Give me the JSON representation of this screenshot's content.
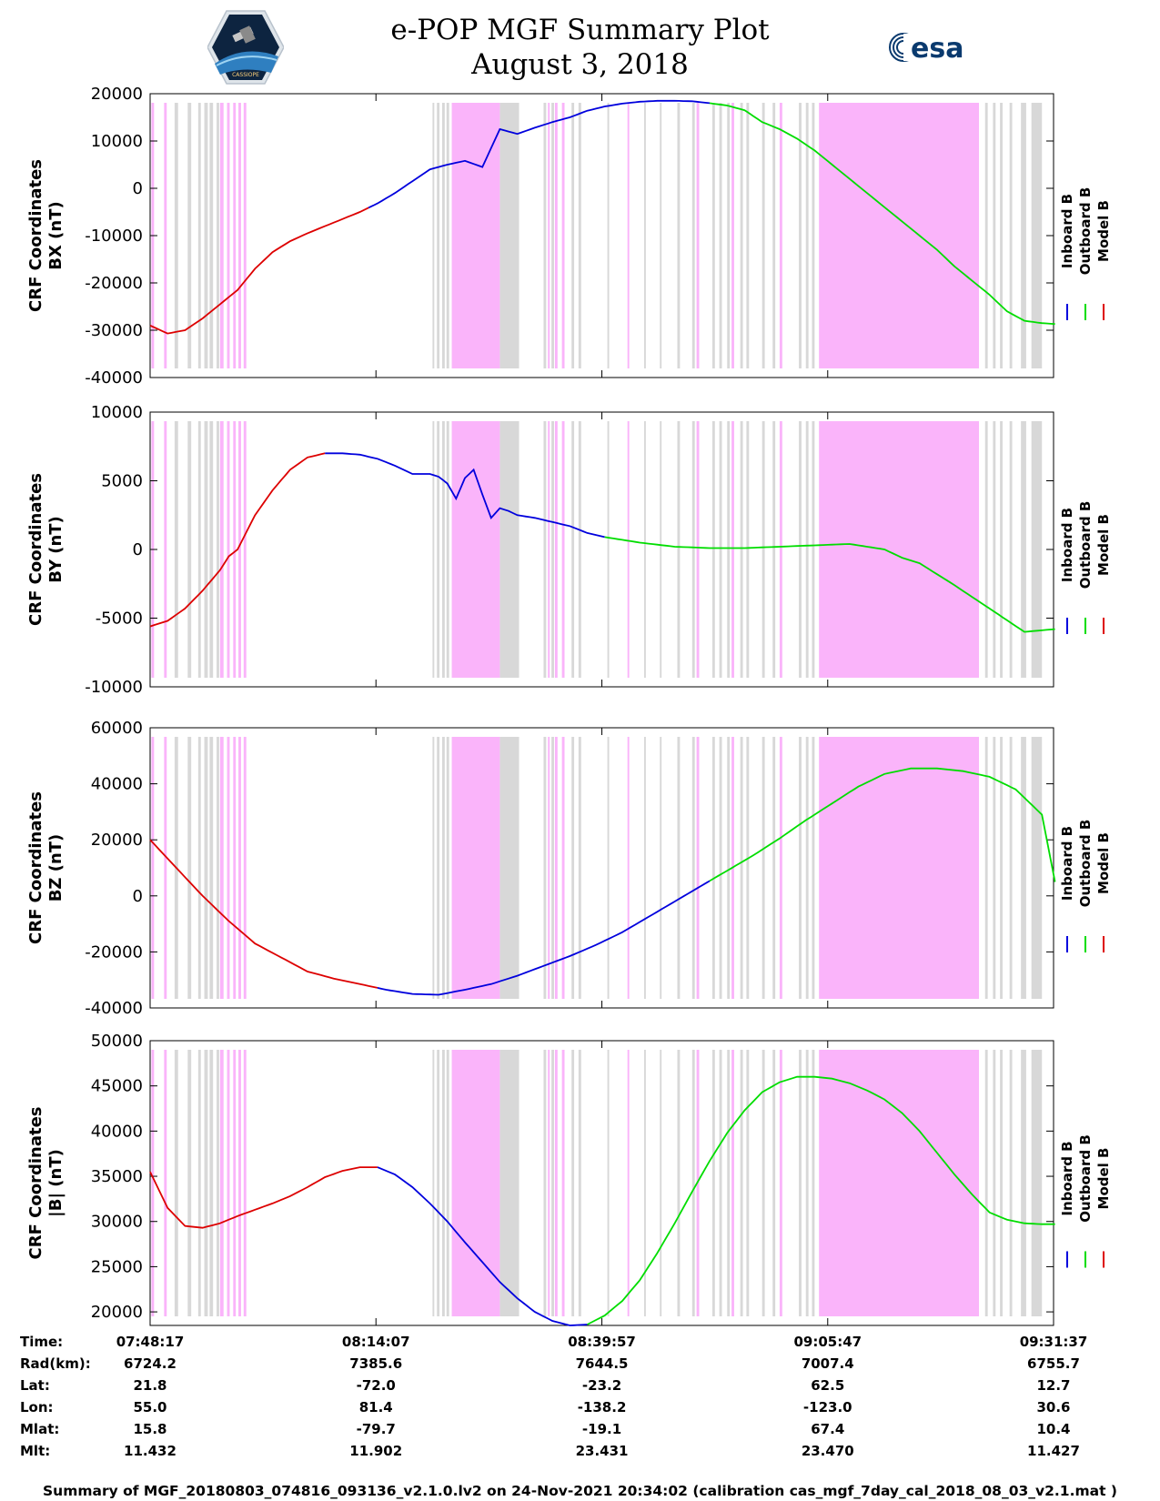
{
  "header": {
    "title_line1": "e-POP MGF Summary Plot",
    "title_line2": "August 3, 2018",
    "left_logo_text": "CASSIOPE",
    "right_logo_text": "esa"
  },
  "colors": {
    "inboard": "#0000dd",
    "outboard": "#00dd00",
    "model": "#dd0000",
    "shade_magenta": "#fab4fa",
    "shade_gray": "#d8d8d8"
  },
  "chart_data": [
    {
      "type": "line",
      "id": "bx",
      "ylabel": [
        "CRF Coordinates",
        "BX (nT)"
      ],
      "ylim": [
        -40000,
        20000
      ],
      "yticks": [
        20000,
        10000,
        0,
        -10000,
        -20000,
        -30000,
        -40000
      ],
      "legend": [
        "Inboard B",
        "Outboard B",
        "Model B"
      ],
      "x_minutes": [
        0,
        2,
        4,
        6,
        8,
        10,
        12,
        14,
        16,
        18,
        20,
        22,
        24,
        26,
        28,
        30,
        32,
        34,
        36,
        38,
        40,
        42,
        44,
        46,
        48,
        50,
        52,
        54,
        56,
        58,
        60,
        62,
        64,
        66,
        68,
        70,
        72,
        74,
        76,
        78,
        80,
        82,
        84,
        86,
        88,
        90,
        92,
        94,
        96,
        98,
        100,
        102,
        103.5
      ],
      "values": [
        -29000,
        -30700,
        -30000,
        -27500,
        -24500,
        -21500,
        -17000,
        -13500,
        -11200,
        -9500,
        -8000,
        -6500,
        -5000,
        -3200,
        -1000,
        1500,
        4000,
        5000,
        5800,
        4500,
        12500,
        11500,
        12800,
        14000,
        15000,
        16400,
        17300,
        17900,
        18300,
        18500,
        18500,
        18400,
        18000,
        17500,
        16500,
        14000,
        12500,
        10500,
        8000,
        5000,
        2000,
        -1000,
        -4000,
        -7000,
        -10000,
        -13000,
        -16500,
        -19500,
        -22500,
        -26000,
        -28000,
        -28500,
        -28700
      ],
      "series_segments": [
        {
          "name": "Model B",
          "from": 0,
          "to": 25
        },
        {
          "name": "Inboard B",
          "from": 25,
          "to": 64
        },
        {
          "name": "Outboard B",
          "from": 64,
          "to": 103.5
        }
      ]
    },
    {
      "type": "line",
      "id": "by",
      "ylabel": [
        "CRF Coordinates",
        "BY (nT)"
      ],
      "ylim": [
        -10000,
        10000
      ],
      "yticks": [
        10000,
        5000,
        0,
        -5000,
        -10000
      ],
      "legend": [
        "Inboard B",
        "Outboard B",
        "Model B"
      ],
      "x_minutes": [
        0,
        2,
        4,
        6,
        8,
        9,
        10,
        12,
        14,
        16,
        18,
        20,
        22,
        24,
        26,
        28,
        30,
        32,
        33,
        34,
        35,
        36,
        37,
        38,
        39,
        40,
        41,
        42,
        44,
        46,
        48,
        50,
        52,
        56,
        60,
        64,
        68,
        72,
        76,
        80,
        84,
        86,
        88,
        92,
        96,
        100,
        103.5
      ],
      "values": [
        -5600,
        -5200,
        -4300,
        -3000,
        -1500,
        -500,
        0,
        2500,
        4300,
        5800,
        6700,
        7000,
        7000,
        6900,
        6600,
        6100,
        5500,
        5500,
        5300,
        4800,
        3700,
        5200,
        5800,
        4000,
        2300,
        3000,
        2800,
        2500,
        2300,
        2000,
        1700,
        1200,
        900,
        500,
        200,
        100,
        100,
        200,
        300,
        400,
        0,
        -600,
        -1000,
        -2600,
        -4300,
        -6000,
        -5800
      ],
      "series_segments": [
        {
          "name": "Model B",
          "from": 0,
          "to": 20
        },
        {
          "name": "Inboard B",
          "from": 20,
          "to": 52
        },
        {
          "name": "Outboard B",
          "from": 52,
          "to": 103.5
        }
      ]
    },
    {
      "type": "line",
      "id": "bz",
      "ylabel": [
        "CRF Coordinates",
        "BZ (nT)"
      ],
      "ylim": [
        -40000,
        60000
      ],
      "yticks": [
        60000,
        40000,
        20000,
        0,
        -20000,
        -40000
      ],
      "legend": [
        "Inboard B",
        "Outboard B",
        "Model B"
      ],
      "x_minutes": [
        0,
        3,
        6,
        9,
        12,
        15,
        18,
        21,
        24,
        27,
        30,
        33,
        36,
        39,
        42,
        45,
        48,
        51,
        54,
        57,
        60,
        63,
        66,
        69,
        72,
        75,
        78,
        81,
        84,
        87,
        90,
        93,
        96,
        99,
        102,
        103.5
      ],
      "values": [
        20000,
        10000,
        0,
        -9000,
        -17000,
        -22000,
        -27000,
        -29500,
        -31500,
        -33500,
        -35000,
        -35300,
        -33500,
        -31500,
        -28500,
        -25000,
        -21500,
        -17500,
        -13000,
        -7500,
        -2000,
        3500,
        9000,
        14500,
        20500,
        27000,
        33000,
        39000,
        43500,
        45500,
        45500,
        44500,
        42500,
        38000,
        29000,
        5000
      ],
      "series_segments": [
        {
          "name": "Model B",
          "from": 0,
          "to": 26
        },
        {
          "name": "Inboard B",
          "from": 26,
          "to": 64
        },
        {
          "name": "Outboard B",
          "from": 64,
          "to": 103.5
        }
      ]
    },
    {
      "type": "line",
      "id": "bt",
      "ylabel": [
        "CRF Coordinates",
        "|B| (nT)"
      ],
      "ylim": [
        18500,
        50000
      ],
      "yticks": [
        50000,
        45000,
        40000,
        35000,
        30000,
        25000,
        20000
      ],
      "legend": [
        "Inboard B",
        "Outboard B",
        "Model B"
      ],
      "x_minutes": [
        0,
        2,
        4,
        6,
        8,
        10,
        12,
        14,
        16,
        18,
        20,
        22,
        24,
        26,
        28,
        30,
        32,
        34,
        36,
        38,
        40,
        42,
        44,
        46,
        48,
        50,
        52,
        54,
        56,
        58,
        60,
        62,
        64,
        66,
        68,
        70,
        72,
        74,
        76,
        78,
        80,
        82,
        84,
        86,
        88,
        90,
        92,
        94,
        96,
        98,
        100,
        102,
        103.5
      ],
      "values": [
        35500,
        31500,
        29500,
        29300,
        29800,
        30600,
        31300,
        32000,
        32800,
        33800,
        34900,
        35600,
        36000,
        36000,
        35200,
        33800,
        32000,
        30000,
        27700,
        25500,
        23300,
        21500,
        20000,
        19000,
        18500,
        18600,
        19600,
        21200,
        23500,
        26500,
        29800,
        33300,
        36700,
        39800,
        42300,
        44300,
        45400,
        46000,
        46000,
        45800,
        45300,
        44500,
        43500,
        42000,
        40000,
        37600,
        35200,
        33000,
        31000,
        30200,
        29800,
        29700,
        29700
      ],
      "series_segments": [
        {
          "name": "Model B",
          "from": 0,
          "to": 26
        },
        {
          "name": "Inboard B",
          "from": 26,
          "to": 50
        },
        {
          "name": "Outboard B",
          "from": 50,
          "to": 103.5
        }
      ]
    }
  ],
  "shading_minutes": {
    "magenta": [
      [
        0.15,
        0.45
      ],
      [
        1.6,
        1.9
      ],
      [
        8.0,
        8.4
      ],
      [
        8.8,
        9.1
      ],
      [
        9.5,
        9.8
      ],
      [
        10.1,
        10.4
      ],
      [
        10.7,
        11.0
      ],
      [
        34.5,
        40.0
      ],
      [
        45.5,
        45.7
      ],
      [
        46.3,
        46.6
      ],
      [
        47.1,
        47.4
      ],
      [
        54.6,
        54.8
      ],
      [
        62.5,
        62.8
      ],
      [
        66.5,
        66.8
      ],
      [
        72.0,
        72.3
      ],
      [
        76.5,
        94.8
      ]
    ],
    "gray": [
      [
        2.8,
        3.2
      ],
      [
        4.3,
        4.7
      ],
      [
        5.5,
        5.8
      ],
      [
        6.2,
        6.6
      ],
      [
        6.8,
        7.2
      ],
      [
        7.6,
        7.9
      ],
      [
        32.3,
        32.5
      ],
      [
        32.8,
        33.1
      ],
      [
        33.4,
        33.7
      ],
      [
        33.9,
        34.2
      ],
      [
        40.0,
        42.2
      ],
      [
        45.0,
        45.3
      ],
      [
        45.9,
        46.2
      ],
      [
        48.2,
        48.5
      ],
      [
        49.0,
        49.3
      ],
      [
        52.3,
        52.5
      ],
      [
        56.5,
        56.7
      ],
      [
        58.3,
        58.5
      ],
      [
        60.3,
        60.6
      ],
      [
        62.0,
        62.3
      ],
      [
        64.3,
        64.6
      ],
      [
        65.1,
        65.4
      ],
      [
        66.0,
        66.3
      ],
      [
        67.5,
        67.8
      ],
      [
        68.2,
        68.5
      ],
      [
        70.0,
        70.3
      ],
      [
        71.2,
        71.5
      ],
      [
        74.2,
        74.5
      ],
      [
        75.0,
        75.3
      ],
      [
        75.7,
        76.0
      ],
      [
        95.5,
        95.8
      ],
      [
        96.4,
        96.7
      ],
      [
        97.2,
        97.5
      ],
      [
        98.3,
        98.6
      ],
      [
        99.6,
        100.2
      ],
      [
        100.8,
        102.0
      ]
    ]
  },
  "time_axis": {
    "start_label": "07:48:17",
    "range_minutes": 103.33,
    "tick_minutes": [
      0,
      25.83,
      51.67,
      77.5,
      103.33
    ]
  },
  "info_table": {
    "labels": [
      "Time:",
      "Rad(km):",
      "Lat:",
      "Lon:",
      "Mlat:",
      "Mlt:"
    ],
    "columns": [
      [
        "07:48:17",
        "6724.2",
        "21.8",
        "55.0",
        "15.8",
        "11.432"
      ],
      [
        "08:14:07",
        "7385.6",
        "-72.0",
        "81.4",
        "-79.7",
        "11.902"
      ],
      [
        "08:39:57",
        "7644.5",
        "-23.2",
        "-138.2",
        "-19.1",
        "23.431"
      ],
      [
        "09:05:47",
        "7007.4",
        "62.5",
        "-123.0",
        "67.4",
        "23.470"
      ],
      [
        "09:31:37",
        "6755.7",
        "12.7",
        "30.6",
        "10.4",
        "11.427"
      ]
    ]
  },
  "footer": "Summary of MGF_20180803_074816_093136_v2.1.0.lv2 on 24-Nov-2021 20:34:02 (calibration cas_mgf_7day_cal_2018_08_03_v2.1.mat )"
}
